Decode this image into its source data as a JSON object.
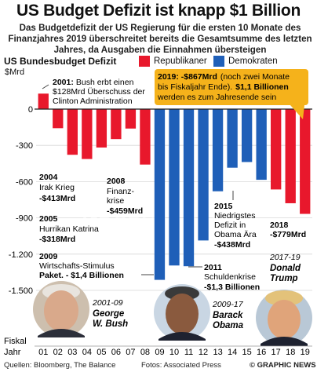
{
  "title": "US Budget Defizit ist knapp $1 Billion",
  "subtitle": "Das Budgetdefizit der US Regierung für die ersten 10 Monate des Finanzjahres 2019 überschreitet bereits die Gesamtsumme des letzten Jahres, da Ausgaben die Einnahmen übersteigen",
  "series_title": "US Bundesbudget Defizit",
  "unit_label": "$Mrd",
  "x_axis_title": [
    "Fiskal",
    "Jahr"
  ],
  "legend": [
    {
      "name": "Republikaner",
      "color": "#e8182c"
    },
    {
      "name": "Demokraten",
      "color": "#1f5fb8"
    }
  ],
  "chart_data": {
    "type": "bar",
    "categories": [
      "01",
      "02",
      "03",
      "04",
      "05",
      "06",
      "07",
      "08",
      "09",
      "10",
      "11",
      "12",
      "13",
      "14",
      "15",
      "16",
      "17",
      "18",
      "19"
    ],
    "values": [
      128,
      -158,
      -378,
      -413,
      -318,
      -248,
      -161,
      -459,
      -1413,
      -1294,
      -1300,
      -1087,
      -680,
      -485,
      -438,
      -585,
      -665,
      -779,
      -867
    ],
    "party": [
      "R",
      "R",
      "R",
      "R",
      "R",
      "R",
      "R",
      "R",
      "D",
      "D",
      "D",
      "D",
      "D",
      "D",
      "D",
      "D",
      "R",
      "R",
      "R"
    ],
    "ylim": [
      -1500,
      200
    ],
    "yticks": [
      0,
      -300,
      -600,
      -900,
      -1200,
      -1500
    ],
    "ytick_labels": [
      "0",
      "-300",
      "-600",
      "-900",
      "-1.200",
      "-1.500"
    ],
    "grid": true
  },
  "annotations": {
    "a2001": {
      "year": "2001:",
      "text": "Bush erbt einen",
      "text2": "$128Mrd Überschuss der",
      "text3": "Clinton Administration"
    },
    "a2004": {
      "year": "2004",
      "text": "Irak Krieg",
      "value": "-$413Mrd"
    },
    "a2005": {
      "year": "2005",
      "text": "Hurrikan Katrina",
      "value": "-$318Mrd"
    },
    "a2008": {
      "year": "2008",
      "text": "Finanz-",
      "text2": "krise",
      "value": "-$459Mrd"
    },
    "a2009": {
      "year": "2009",
      "text": "Wirtschafts-Stimulus",
      "text2": "Paket. - $1,4 Billionen"
    },
    "a2011": {
      "year": "2011",
      "text": "Schuldenkrise",
      "value": "-$1,3 Billionen"
    },
    "a2015": {
      "year": "2015",
      "text": "Niedrigstes",
      "text2": "Defizit in",
      "text3": "Obama Ära",
      "value": "-$438Mrd"
    },
    "a2018": {
      "year": "2018",
      "value": "-$779Mrd"
    },
    "a2019": {
      "year_value": "2019: -$867Mrd",
      "text": "(noch zwei Monate",
      "text2": "bis Fiskaljahr Ende).",
      "value": "$1,1 Billionen",
      "text3": "werden es zum Jahresende sein"
    }
  },
  "presidents": [
    {
      "years": "2001-09",
      "first": "George",
      "last": "W. Bush"
    },
    {
      "years": "2009-17",
      "first": "Barack",
      "last": "Obama"
    },
    {
      "years": "2017-19",
      "first": "Donald",
      "last": "Trump"
    }
  ],
  "watermark": "GRAPHIC NEWS",
  "sources": "Quellen: Bloomberg, The Balance",
  "photos": "Fotos: Associated Press",
  "brand": "© GRAPHIC NEWS"
}
